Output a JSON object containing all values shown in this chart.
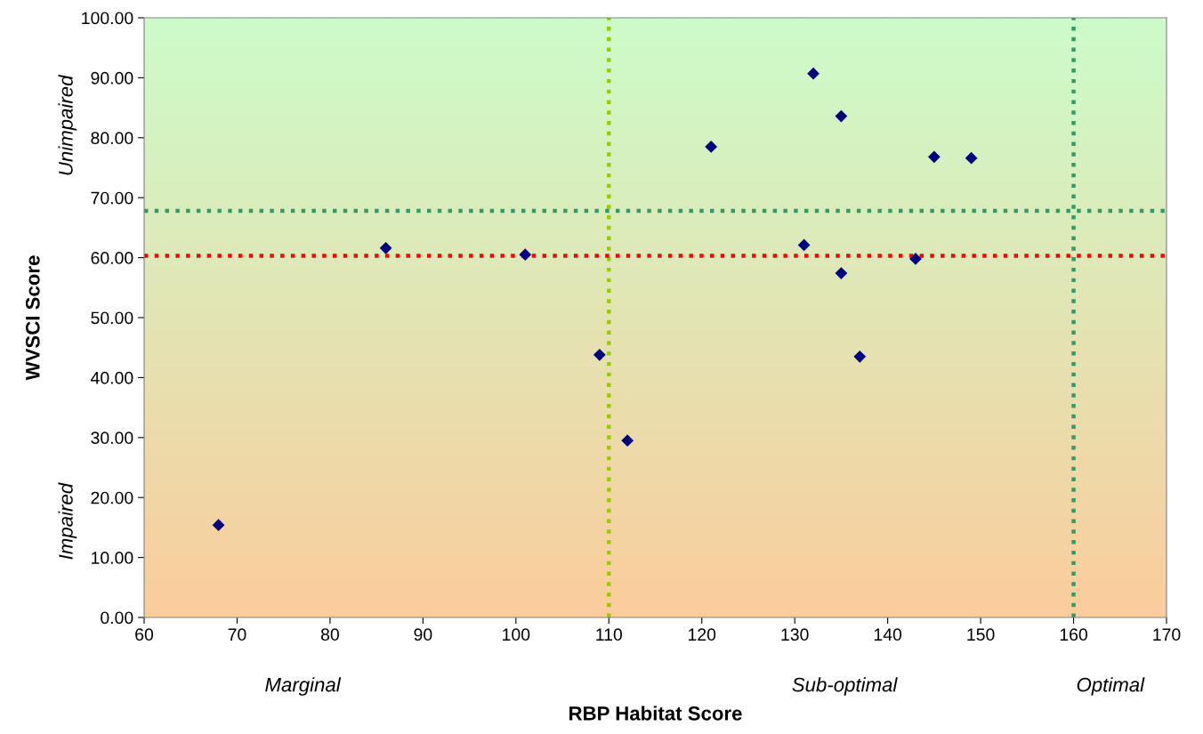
{
  "chart_data": {
    "type": "scatter",
    "xlabel": "RBP Habitat Score",
    "ylabel": "WVSCI Score",
    "x": [
      68,
      86,
      101,
      109,
      112,
      121,
      132,
      135,
      145,
      149,
      131,
      135,
      137,
      143
    ],
    "values": [
      15.4,
      61.6,
      60.5,
      43.8,
      29.5,
      78.5,
      90.7,
      83.6,
      76.8,
      76.6,
      62.1,
      57.4,
      43.5,
      59.8
    ],
    "color": "#000080",
    "marker": "diamond",
    "xlim": [
      60,
      170
    ],
    "xticks": [
      60,
      70,
      80,
      90,
      100,
      110,
      120,
      130,
      140,
      150,
      160,
      170
    ],
    "ylim": [
      0,
      100
    ],
    "yticks": [
      {
        "value": 0,
        "label": "0.00"
      },
      {
        "value": 10,
        "label": "10.00"
      },
      {
        "value": 20,
        "label": "20.00"
      },
      {
        "value": 30,
        "label": "30.00"
      },
      {
        "value": 40,
        "label": "40.00"
      },
      {
        "value": 50,
        "label": "50.00"
      },
      {
        "value": 60,
        "label": "60.00"
      },
      {
        "value": 70,
        "label": "70.00"
      },
      {
        "value": 80,
        "label": "80.00"
      },
      {
        "value": 90,
        "label": "90.00"
      },
      {
        "value": 100,
        "label": "100.00"
      }
    ],
    "ref_lines": [
      {
        "axis": "x",
        "value": 110,
        "color": "#99cc00",
        "line_style": "dotted"
      },
      {
        "axis": "x",
        "value": 160,
        "color": "#339966",
        "line_style": "dotted"
      },
      {
        "axis": "y",
        "value": 67.8,
        "color": "#339966",
        "line_style": "dotted"
      },
      {
        "axis": "y",
        "value": 60.3,
        "color": "#ff0000",
        "line_style": "dotted"
      }
    ],
    "annotations": [
      "Unimpaired",
      "Impaired",
      "Marginal",
      "Sub-optimal",
      "Optimal"
    ],
    "grid": false
  }
}
